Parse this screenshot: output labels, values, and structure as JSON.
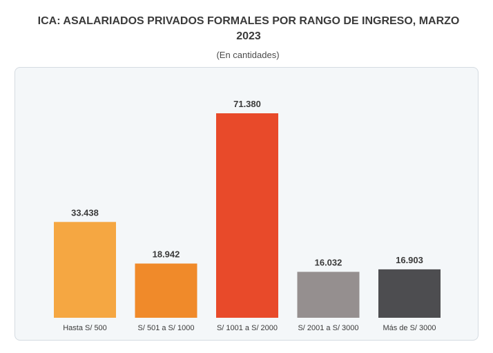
{
  "chart_data": {
    "type": "bar",
    "title": "ICA: ASALARIADOS PRIVADOS FORMALES POR RANGO DE INGRESO, MARZO 2023",
    "subtitle": "(En cantidades)",
    "categories": [
      "Hasta S/ 500",
      "S/ 501 a S/ 1000",
      "S/ 1001 a S/ 2000",
      "S/ 2001 a S/ 3000",
      "Más de S/ 3000"
    ],
    "values": [
      33438,
      18942,
      71380,
      16032,
      16903
    ],
    "value_labels": [
      "33.438",
      "18.942",
      "71.380",
      "16.032",
      "16.903"
    ],
    "colors": [
      "#f5a742",
      "#f08a2a",
      "#e84a2a",
      "#958f8f",
      "#4d4d50"
    ],
    "ylim": [
      0,
      71380
    ],
    "grid": false,
    "legend": "none"
  }
}
